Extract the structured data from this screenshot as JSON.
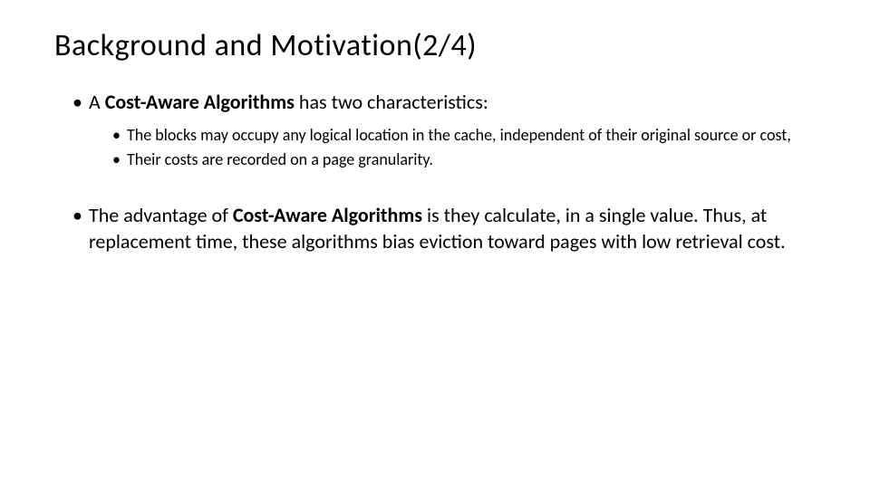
{
  "slide": {
    "title": "Background and Motivation(2/4)",
    "bullets": [
      {
        "prefix": "A ",
        "bold": "Cost-Aware Algorithms",
        "suffix": " has two characteristics:",
        "sub": [
          "The blocks may occupy any logical location in the cache, independent of their original source or cost,",
          "Their costs are recorded on a page granularity."
        ]
      },
      {
        "prefix": "The advantage of ",
        "bold": "Cost-Aware Algorithms",
        "suffix": " is they calculate, in a single value. Thus, at replacement time, these algorithms bias eviction toward pages with low retrieval cost."
      }
    ]
  },
  "style": {
    "background_color": "#ffffff",
    "text_color": "#000000",
    "title_fontsize": 34,
    "level1_fontsize": 22,
    "level2_fontsize": 18,
    "font_family": "Calibri"
  }
}
